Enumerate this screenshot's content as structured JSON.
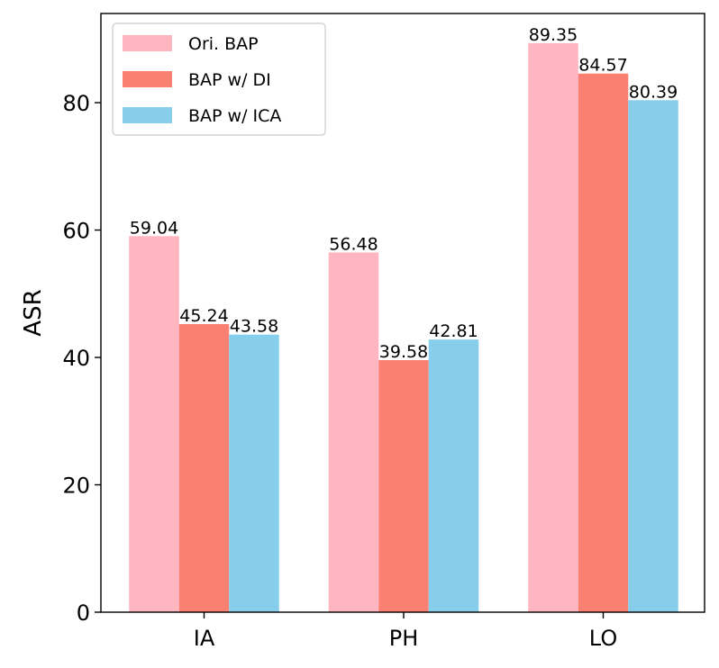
{
  "chart_data": {
    "type": "bar",
    "title": "",
    "xlabel": "",
    "ylabel": "ASR",
    "categories": [
      "IA",
      "PH",
      "LO"
    ],
    "series": [
      {
        "name": "Ori. BAP",
        "values": [
          59.04,
          56.48,
          89.35
        ],
        "color": "#FFB6C1",
        "value_labels": [
          "59.04",
          "56.48",
          "89.35"
        ]
      },
      {
        "name": "BAP w/ DI",
        "values": [
          45.24,
          39.58,
          84.57
        ],
        "color": "#FA8072",
        "value_labels": [
          "45.24",
          "39.58",
          "84.57"
        ]
      },
      {
        "name": "BAP w/ ICA",
        "values": [
          43.58,
          42.81,
          80.39
        ],
        "color": "#87CEEB",
        "value_labels": [
          "43.58",
          "42.81",
          "80.39"
        ]
      }
    ],
    "ylim": [
      0,
      94
    ],
    "yticks": [
      0,
      20,
      40,
      60,
      80
    ],
    "ytick_labels": [
      "0",
      "20",
      "40",
      "60",
      "80"
    ],
    "grid": false,
    "legend_position": "top-left"
  }
}
